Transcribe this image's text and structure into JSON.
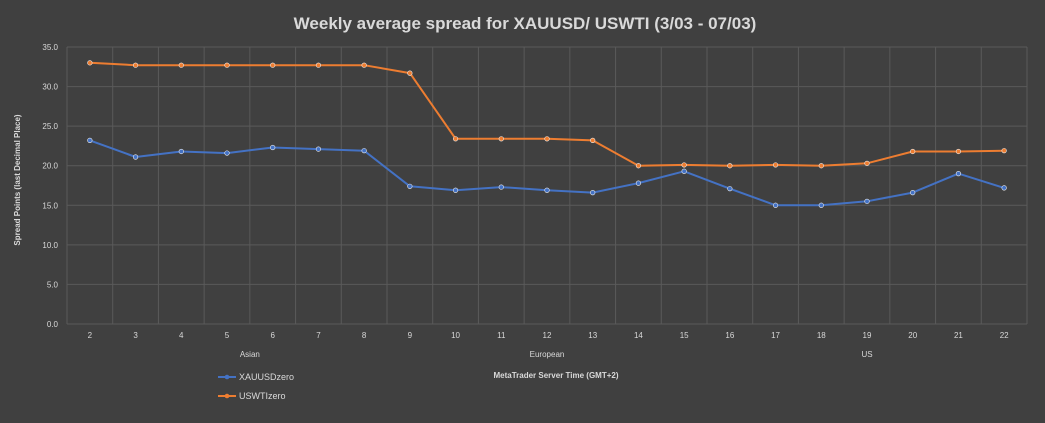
{
  "chart_data": {
    "type": "line",
    "title": "Weekly average spread for XAUUSD/ USWTI (3/03 - 07/03)",
    "xlabel": "MetaTrader Server Time (GMT+2)",
    "ylabel": "Spread Points  (last Decimal Place)",
    "x": [
      "2",
      "3",
      "4",
      "5",
      "6",
      "7",
      "8",
      "9",
      "10",
      "11",
      "12",
      "13",
      "14",
      "15",
      "16",
      "17",
      "18",
      "19",
      "20",
      "21",
      "22"
    ],
    "ylim": [
      0,
      35
    ],
    "yticks": [
      "0.0",
      "5.0",
      "10.0",
      "15.0",
      "20.0",
      "25.0",
      "30.0",
      "35.0"
    ],
    "grid": true,
    "legend": "bottom-left",
    "sessions": [
      {
        "label": "Asian",
        "position": "5.5"
      },
      {
        "label": "European",
        "position": "12"
      },
      {
        "label": "US",
        "position": "19"
      }
    ],
    "series": [
      {
        "name": "XAUUSDzero",
        "color": "#4472c4",
        "values": [
          23.2,
          21.1,
          21.8,
          21.6,
          22.3,
          22.1,
          21.9,
          17.4,
          16.9,
          17.3,
          16.9,
          16.6,
          17.8,
          19.3,
          17.1,
          15.0,
          15.0,
          15.5,
          16.6,
          19.0,
          17.2
        ]
      },
      {
        "name": "USWTIzero",
        "color": "#ed7d31",
        "values": [
          33.0,
          32.7,
          32.7,
          32.7,
          32.7,
          32.7,
          32.7,
          31.7,
          23.4,
          23.4,
          23.4,
          23.2,
          20.0,
          20.1,
          20.0,
          20.1,
          20.0,
          20.3,
          21.8,
          21.8,
          21.9
        ]
      }
    ]
  }
}
